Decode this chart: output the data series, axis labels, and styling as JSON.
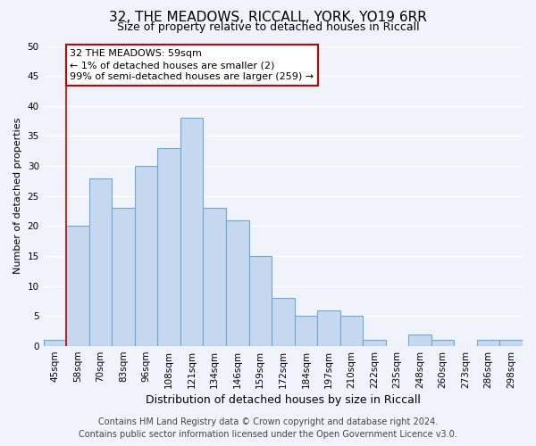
{
  "title": "32, THE MEADOWS, RICCALL, YORK, YO19 6RR",
  "subtitle": "Size of property relative to detached houses in Riccall",
  "xlabel": "Distribution of detached houses by size in Riccall",
  "ylabel": "Number of detached properties",
  "bar_labels": [
    "45sqm",
    "58sqm",
    "70sqm",
    "83sqm",
    "96sqm",
    "108sqm",
    "121sqm",
    "134sqm",
    "146sqm",
    "159sqm",
    "172sqm",
    "184sqm",
    "197sqm",
    "210sqm",
    "222sqm",
    "235sqm",
    "248sqm",
    "260sqm",
    "273sqm",
    "286sqm",
    "298sqm"
  ],
  "bar_values": [
    1,
    20,
    28,
    23,
    30,
    33,
    38,
    23,
    21,
    15,
    8,
    5,
    6,
    5,
    1,
    0,
    2,
    1,
    0,
    1,
    1
  ],
  "bar_color": "#c5d8f0",
  "bar_edge_color": "#6fa8d4",
  "vline_color": "#cc0000",
  "vline_x_index": 1,
  "annotation_line1": "32 THE MEADOWS: 59sqm",
  "annotation_line2": "← 1% of detached houses are smaller (2)",
  "annotation_line3": "99% of semi-detached houses are larger (259) →",
  "annotation_box_color": "white",
  "annotation_box_edge_color": "#cc0000",
  "ylim": [
    0,
    50
  ],
  "yticks": [
    0,
    5,
    10,
    15,
    20,
    25,
    30,
    35,
    40,
    45,
    50
  ],
  "footer_line1": "Contains HM Land Registry data © Crown copyright and database right 2024.",
  "footer_line2": "Contains public sector information licensed under the Open Government Licence v3.0.",
  "bg_color": "#f0f4fa",
  "grid_color": "#ffffff",
  "title_fontsize": 11,
  "subtitle_fontsize": 9,
  "xlabel_fontsize": 9,
  "ylabel_fontsize": 8,
  "tick_fontsize": 7.5,
  "annotation_fontsize": 8,
  "footer_fontsize": 7
}
